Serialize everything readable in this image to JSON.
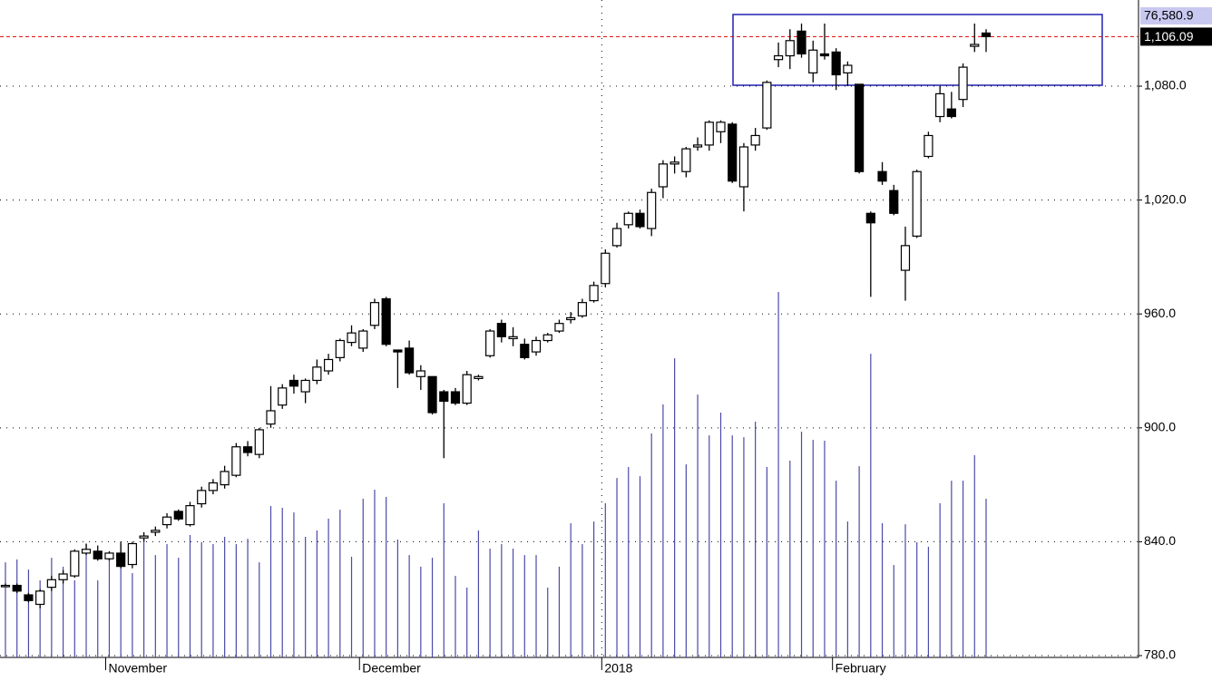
{
  "chart_data": {
    "type": "candlestick",
    "categories": [
      null,
      null,
      null,
      null,
      null,
      null,
      null,
      null,
      null,
      "November",
      null,
      null,
      null,
      null,
      null,
      null,
      null,
      null,
      null,
      null,
      null,
      null,
      null,
      null,
      null,
      null,
      null,
      null,
      null,
      null,
      null,
      "December",
      null,
      null,
      null,
      null,
      null,
      null,
      null,
      null,
      null,
      null,
      null,
      null,
      null,
      null,
      null,
      null,
      null,
      null,
      null,
      null,
      "2018",
      null,
      null,
      null,
      null,
      null,
      null,
      null,
      null,
      null,
      null,
      null,
      null,
      null,
      null,
      null,
      null,
      null,
      null,
      null,
      "February",
      null,
      null,
      null,
      null,
      null,
      null,
      null,
      null,
      null,
      null,
      null,
      null,
      null
    ],
    "open": [
      817,
      817,
      812,
      807,
      816,
      820,
      822,
      834,
      835,
      831,
      834,
      828,
      842,
      845,
      849,
      856,
      849,
      860,
      867,
      870,
      875,
      890,
      886,
      902,
      912,
      925,
      919,
      925,
      930,
      937,
      945,
      942,
      954,
      968,
      941,
      942,
      927,
      927,
      919,
      919,
      913,
      926,
      938,
      955,
      947,
      944,
      940,
      946,
      951,
      957,
      959,
      967,
      976,
      996,
      1007,
      1013,
      1005,
      1027,
      1039,
      1035,
      1048,
      1049,
      1056,
      1060,
      1027,
      1049,
      1058,
      1094,
      1096,
      1109,
      1087,
      1097,
      1098,
      1087,
      1081,
      1013,
      1035,
      1025,
      983,
      1001,
      1043,
      1064,
      1068,
      1073,
      1101,
      1108
    ],
    "high": [
      818,
      818,
      813,
      815,
      822,
      825,
      836,
      839,
      838,
      835,
      840,
      840,
      845,
      848,
      855,
      857,
      861,
      869,
      873,
      880,
      892,
      893,
      900,
      922,
      923,
      928,
      926,
      936,
      939,
      947,
      954,
      952,
      968,
      969,
      941,
      946,
      933,
      927,
      920,
      921,
      930,
      928,
      952,
      957,
      953,
      947,
      948,
      950,
      957,
      961,
      968,
      977,
      994,
      1008,
      1014,
      1015,
      1026,
      1041,
      1043,
      1048,
      1053,
      1062,
      1062,
      1061,
      1050,
      1058,
      1083,
      1103,
      1110,
      1113,
      1104,
      1113,
      1100,
      1093,
      1081,
      1014,
      1040,
      1028,
      1006,
      1036,
      1056,
      1080,
      1077,
      1092,
      1113,
      1110
    ],
    "low": [
      816,
      813,
      808,
      805,
      814,
      818,
      821,
      833,
      830,
      830,
      826,
      826,
      840,
      843,
      847,
      851,
      848,
      858,
      865,
      868,
      874,
      885,
      884,
      900,
      910,
      918,
      913,
      923,
      928,
      935,
      943,
      940,
      952,
      943,
      921,
      928,
      920,
      907,
      884,
      912,
      912,
      925,
      937,
      945,
      943,
      936,
      938,
      945,
      950,
      955,
      958,
      966,
      974,
      995,
      1005,
      1005,
      1001,
      1021,
      1034,
      1032,
      1046,
      1046,
      1050,
      1029,
      1014,
      1046,
      1057,
      1090,
      1089,
      1095,
      1082,
      1094,
      1078,
      1080,
      1034,
      969,
      1028,
      1012,
      967,
      1000,
      1042,
      1061,
      1063,
      1069,
      1098,
      1098
    ],
    "close": [
      817,
      814,
      809,
      814,
      820,
      823,
      835,
      836,
      831,
      834,
      827,
      839,
      843,
      846,
      853,
      852,
      859,
      867,
      871,
      877,
      890,
      887,
      899,
      909,
      921,
      922,
      925,
      932,
      936,
      946,
      950,
      951,
      966,
      944,
      940,
      929,
      930,
      908,
      914,
      913,
      928,
      927,
      951,
      948,
      948,
      937,
      946,
      949,
      955,
      958,
      966,
      975,
      992,
      1005,
      1013,
      1006,
      1024,
      1039,
      1040,
      1047,
      1049,
      1061,
      1061,
      1030,
      1048,
      1054,
      1082,
      1096,
      1104,
      1097,
      1099,
      1096,
      1086,
      1091,
      1035,
      1008,
      1030,
      1013,
      996,
      1035,
      1054,
      1076,
      1064,
      1090,
      1102,
      1106.09
    ],
    "volume": {
      "color": "#4a4aa8",
      "values": [
        45900,
        47300,
        42400,
        37200,
        48100,
        43800,
        37200,
        54700,
        37200,
        49400,
        54700,
        40700,
        59100,
        49400,
        54700,
        48100,
        59100,
        55600,
        54700,
        58200,
        54700,
        57300,
        45900,
        73100,
        72200,
        70000,
        58200,
        61300,
        67000,
        71300,
        48600,
        76600,
        81000,
        77500,
        56900,
        49400,
        43800,
        48100,
        74400,
        39400,
        33700,
        61300,
        52500,
        54700,
        52500,
        49400,
        49400,
        33700,
        43800,
        64800,
        54700,
        65600,
        74400,
        86600,
        91900,
        87500,
        108100,
        122100,
        144400,
        93200,
        126900,
        107200,
        118200,
        107200,
        106300,
        113800,
        91900,
        176400,
        95000,
        109000,
        105000,
        104600,
        85300,
        65600,
        92300,
        146600,
        64800,
        44600,
        64300,
        55600,
        53400,
        74400,
        85300,
        85300,
        97600,
        76580.9
      ]
    },
    "up_color": "#ffffff",
    "down_color": "#000000",
    "last_price_label": "1,106.09",
    "last_volume_label": "76,580.9",
    "ylim": [
      780,
      1125.4
    ],
    "yticks": [
      {
        "value": 780,
        "label": "780.0"
      },
      {
        "value": 840,
        "label": "840.0"
      },
      {
        "value": 900,
        "label": "900.0"
      },
      {
        "value": 960,
        "label": "960.0"
      },
      {
        "value": 1020,
        "label": "1,020.0"
      },
      {
        "value": 1080,
        "label": "1,080.0"
      }
    ],
    "grid": true
  }
}
